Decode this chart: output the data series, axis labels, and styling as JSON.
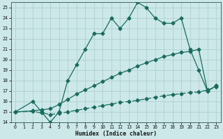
{
  "xlabel": "Humidex (Indice chaleur)",
  "bg_color": "#cce8e8",
  "line_color": "#1a6b5e",
  "grid_color": "#b0d0d0",
  "ylim": [
    14,
    25.5
  ],
  "xlim": [
    -0.5,
    23.5
  ],
  "yticks": [
    14,
    15,
    16,
    17,
    18,
    19,
    20,
    21,
    22,
    23,
    24,
    25
  ],
  "xticks": [
    0,
    1,
    2,
    3,
    4,
    5,
    6,
    7,
    8,
    9,
    10,
    11,
    12,
    13,
    14,
    15,
    16,
    17,
    18,
    19,
    20,
    21,
    22,
    23
  ],
  "curve1_x": [
    0,
    2,
    3,
    4,
    5,
    6,
    7,
    8,
    9,
    10,
    11,
    12,
    13,
    14,
    15,
    16,
    17,
    18,
    19,
    20,
    21,
    22,
    23
  ],
  "curve1_y": [
    15,
    16,
    15,
    14,
    15,
    18,
    19.5,
    21,
    22.5,
    22.5,
    24,
    23,
    24,
    25.5,
    25,
    24,
    23.5,
    23.5,
    24,
    21,
    19,
    17,
    17.5
  ],
  "curve2_x": [
    0,
    2,
    3,
    4,
    5,
    6,
    7,
    8,
    9,
    10,
    11,
    12,
    13,
    14,
    15,
    16,
    17,
    18,
    19,
    20,
    21,
    22,
    23
  ],
  "curve2_y": [
    15,
    15.1,
    15.2,
    15.3,
    15.7,
    16.2,
    16.7,
    17.1,
    17.5,
    17.9,
    18.3,
    18.7,
    19.0,
    19.4,
    19.7,
    20.0,
    20.3,
    20.5,
    20.7,
    20.8,
    21.0,
    17.0,
    17.5
  ],
  "curve3_x": [
    0,
    2,
    3,
    4,
    5,
    6,
    7,
    8,
    9,
    10,
    11,
    12,
    13,
    14,
    15,
    16,
    17,
    18,
    19,
    20,
    21,
    22,
    23
  ],
  "curve3_y": [
    15,
    15.05,
    14.9,
    14.75,
    14.85,
    15.0,
    15.15,
    15.3,
    15.45,
    15.6,
    15.75,
    15.9,
    16.0,
    16.1,
    16.25,
    16.4,
    16.55,
    16.65,
    16.75,
    16.85,
    16.9,
    17.1,
    17.4
  ],
  "marker": "D",
  "markersize": 2.5,
  "linewidth": 0.9
}
